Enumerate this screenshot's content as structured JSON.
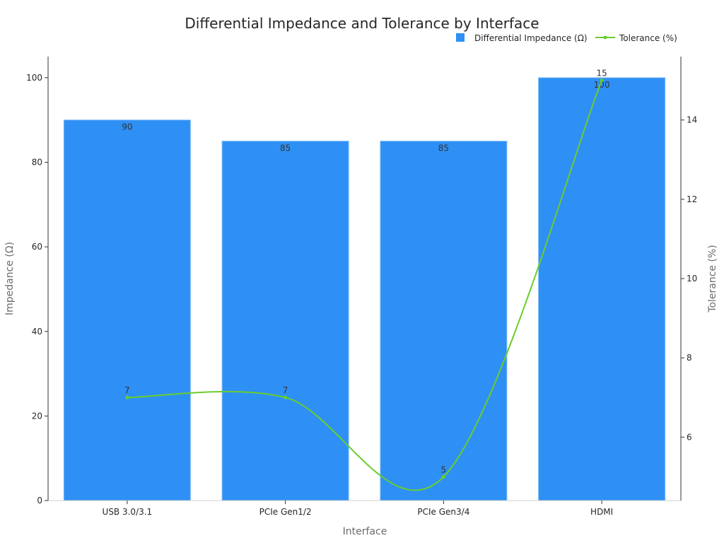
{
  "chart_data": {
    "type": "bar",
    "title": "Differential Impedance and Tolerance by Interface",
    "xlabel": "Interface",
    "ylabel": "Impedance (Ω)",
    "y2label": "Tolerance (%)",
    "categories": [
      "USB 3.0/3.1",
      "PCIe Gen1/2",
      "PCIe Gen3/4",
      "HDMI"
    ],
    "series": [
      {
        "name": "Differential Impedance (Ω)",
        "type": "bar",
        "axis": "left",
        "values": [
          90,
          85,
          85,
          100
        ],
        "color": "#2e90f5"
      },
      {
        "name": "Tolerance (%)",
        "type": "line",
        "axis": "right",
        "values": [
          7,
          7,
          5,
          15
        ],
        "color": "#6acd2c"
      }
    ],
    "ylim": [
      0,
      105
    ],
    "y2lim": [
      4.4,
      15.6
    ],
    "yticks": [
      0,
      20,
      40,
      60,
      80,
      100
    ],
    "y2ticks": [
      6,
      8,
      10,
      12,
      14
    ],
    "grid": false,
    "legend": "top-right"
  }
}
